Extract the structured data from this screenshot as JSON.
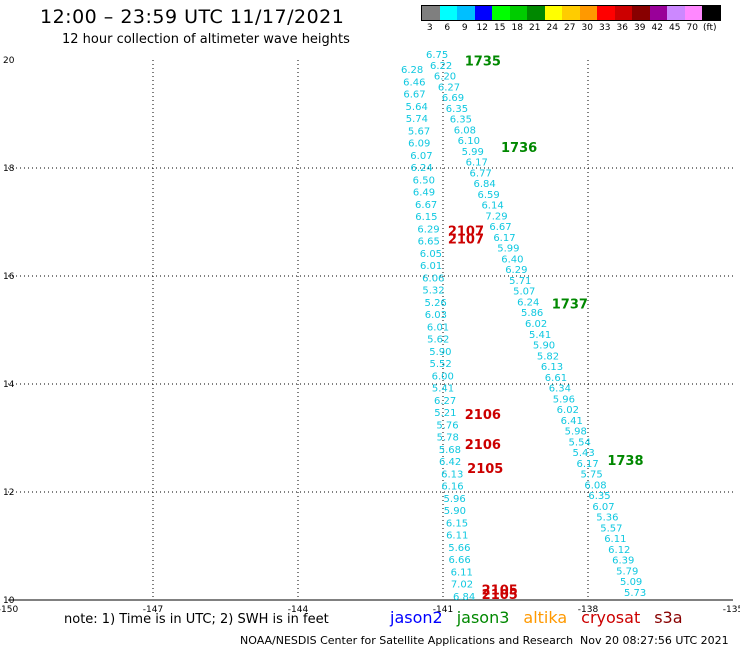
{
  "title": "12:00 – 23:59 UTC 11/17/2021",
  "subtitle": "12 hour collection of altimeter wave heights",
  "legend": {
    "labels": [
      "3",
      "6",
      "9",
      "12",
      "15",
      "18",
      "21",
      "24",
      "27",
      "30",
      "33",
      "36",
      "39",
      "42",
      "45",
      "70",
      "(ft)"
    ],
    "colors": [
      "#7f7f7f",
      "#00ffff",
      "#00bfff",
      "#0000ff",
      "#00ff00",
      "#00cc00",
      "#008800",
      "#ffff00",
      "#ffcc00",
      "#ff9900",
      "#ff0000",
      "#cc0000",
      "#880000",
      "#990099",
      "#cc88ff",
      "#ff88ff",
      "#000000"
    ]
  },
  "note": "note: 1) Time is in UTC; 2) SWH is in feet",
  "satellites": [
    {
      "name": "jason2",
      "color": "#0000ff"
    },
    {
      "name": "jason3",
      "color": "#008800"
    },
    {
      "name": "altika",
      "color": "#ff9900"
    },
    {
      "name": "cryosat",
      "color": "#cc0000"
    },
    {
      "name": "s3a",
      "color": "#880000"
    }
  ],
  "credit": "NOAA/NESDIS Center for Satellite Applications and Research",
  "stamp": "Nov 20 08:27:56 UTC 2021",
  "map": {
    "lon_range": [
      -150,
      -135
    ],
    "lat_range": [
      10,
      20
    ],
    "x_ticks": [
      "-150",
      "-147",
      "-144",
      "-141",
      "-138",
      "-135"
    ],
    "y_ticks": [
      "20",
      "18",
      "16",
      "14",
      "12",
      "10"
    ],
    "grid": true
  },
  "chart_data": {
    "type": "scatter",
    "xlabel": "",
    "ylabel": "",
    "xlim": [
      -150,
      -135
    ],
    "ylim": [
      10,
      20
    ],
    "track_a_values": [
      "6.75",
      "6.22",
      "6.20",
      "6.27",
      "6.69",
      "6.35",
      "6.35",
      "6.08",
      "6.10",
      "5.99",
      "6.17",
      "6.77",
      "6.84",
      "6.59",
      "6.14",
      "7.29",
      "6.67",
      "6.17",
      "5.99",
      "6.40",
      "6.29",
      "5.71",
      "5.07",
      "6.24",
      "5.86",
      "6.02",
      "5.41",
      "5.90",
      "5.82",
      "6.13",
      "6.61",
      "6.34",
      "5.96",
      "6.02",
      "6.41",
      "5.98",
      "5.54",
      "5.43",
      "6.17",
      "5.75",
      "6.08",
      "6.35",
      "6.07",
      "5.36",
      "5.57",
      "6.11",
      "6.12",
      "6.39",
      "5.79",
      "5.09",
      "5.73"
    ],
    "track_b_values": [
      "6.28",
      "6.46",
      "6.67",
      "5.64",
      "5.74",
      "5.67",
      "6.09",
      "6.07",
      "6.24",
      "6.50",
      "6.49",
      "6.67",
      "6.15",
      "6.29",
      "6.65",
      "6.05",
      "6.01",
      "6.06",
      "5.32",
      "5.26",
      "6.03",
      "6.01",
      "5.62",
      "5.90",
      "5.52",
      "6.00",
      "5.41",
      "6.27",
      "5.21",
      "5.76",
      "5.78",
      "5.68",
      "6.42",
      "6.13",
      "6.16",
      "5.96",
      "5.90",
      "6.15",
      "6.11",
      "5.66",
      "6.66",
      "6.11",
      "7.02",
      "6.84"
    ],
    "time_labels_green": [
      {
        "text": "1735",
        "lon": -140.55,
        "lat": 19.9
      },
      {
        "text": "1736",
        "lon": -139.8,
        "lat": 18.3
      },
      {
        "text": "1737",
        "lon": -138.75,
        "lat": 15.4
      },
      {
        "text": "1738",
        "lon": -137.6,
        "lat": 12.5
      }
    ],
    "time_labels_red": [
      {
        "text": "2107",
        "lon": -140.9,
        "lat": 16.75
      },
      {
        "text": "2107",
        "lon": -140.9,
        "lat": 16.6
      },
      {
        "text": "2106",
        "lon": -140.55,
        "lat": 13.35
      },
      {
        "text": "2106",
        "lon": -140.55,
        "lat": 12.8
      },
      {
        "text": "2105",
        "lon": -140.5,
        "lat": 12.35
      },
      {
        "text": "2105",
        "lon": -140.2,
        "lat": 10.1
      },
      {
        "text": "2105",
        "lon": -140.2,
        "lat": 10.02
      }
    ]
  }
}
